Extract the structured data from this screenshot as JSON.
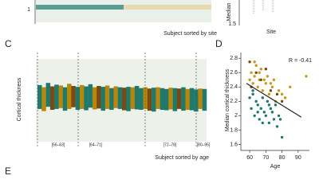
{
  "panel_top_left": {
    "ytick": "1",
    "xlabel": "Subject sorted by site"
  },
  "panel_top_right": {
    "ylabel": "Median",
    "ytick": "1.5",
    "xlabel": "Site"
  },
  "panel_c": {
    "label": "C",
    "ylabel": "Cortical thickness",
    "xlabel": "Subject sorted by age",
    "groups": [
      "[56–63]",
      "[64–71]",
      "[72–78]",
      "[80–95]"
    ],
    "chart_data": {
      "type": "range-bar",
      "ylim": [
        1.4,
        3.6
      ],
      "low": [
        2.3,
        2.25,
        2.35,
        2.28,
        2.3,
        2.32,
        2.26,
        2.3,
        2.34,
        2.28,
        2.3,
        2.27,
        2.33,
        2.29,
        2.31,
        2.26,
        2.3,
        2.28,
        2.32,
        2.3,
        2.27,
        2.25,
        2.3,
        2.29,
        2.28,
        2.3,
        2.26,
        2.24,
        2.3,
        2.28,
        2.27,
        2.29,
        2.25,
        2.3,
        2.26,
        2.28,
        2.27,
        2.24,
        2.3,
        2.26
      ],
      "high": [
        2.85,
        2.8,
        2.9,
        2.82,
        2.86,
        2.84,
        2.8,
        2.88,
        2.83,
        2.81,
        2.85,
        2.82,
        2.87,
        2.8,
        2.83,
        2.81,
        2.84,
        2.78,
        2.82,
        2.8,
        2.79,
        2.81,
        2.8,
        2.83,
        2.78,
        2.8,
        2.77,
        2.79,
        2.8,
        2.78,
        2.76,
        2.79,
        2.78,
        2.77,
        2.8,
        2.76,
        2.78,
        2.75,
        2.77,
        2.76
      ],
      "colors": [
        "#1f7a6d",
        "#b8860b",
        "#1f7a6d",
        "#7a4a14",
        "#1f7a6d",
        "#b8860b",
        "#1f7a6d",
        "#b8860b",
        "#7a4a14",
        "#1f7a6d",
        "#b8860b",
        "#1f7a6d",
        "#1f7a6d",
        "#b8860b",
        "#7a4a14",
        "#1f7a6d",
        "#b8860b",
        "#1f7a6d",
        "#b8860b",
        "#1f7a6d",
        "#7a4a14",
        "#1f7a6d",
        "#b8860b",
        "#1f7a6d",
        "#1f7a6d",
        "#b8860b",
        "#7a4a14",
        "#1f7a6d",
        "#b8860b",
        "#1f7a6d",
        "#1f7a6d",
        "#b8860b",
        "#1f7a6d",
        "#7a4a14",
        "#1f7a6d",
        "#b8860b",
        "#1f7a6d",
        "#1f7a6d",
        "#b8860b",
        "#1f7a6d"
      ]
    }
  },
  "panel_d": {
    "label": "D",
    "annotation": "R = -0.41",
    "chart_data": {
      "type": "scatter",
      "xlabel": "Age",
      "ylabel": "Median cortical thickness",
      "xlim": [
        56,
        97
      ],
      "ylim": [
        1.55,
        2.88
      ],
      "xticks": [
        60,
        70,
        80,
        90
      ],
      "yticks": [
        1.6,
        1.8,
        2.0,
        2.2,
        2.4,
        2.6,
        2.8
      ],
      "series": [
        {
          "color": "#1f7a6d",
          "x": [
            60,
            61,
            62,
            63,
            64,
            65,
            66,
            67,
            68,
            69,
            70,
            71,
            72,
            73,
            74,
            75,
            76,
            77,
            78,
            80,
            62,
            65,
            68,
            72,
            79
          ],
          "values": [
            2.25,
            2.1,
            2.3,
            2.0,
            2.2,
            2.15,
            1.95,
            2.1,
            2.25,
            2.05,
            2.0,
            2.2,
            1.9,
            2.1,
            2.05,
            1.95,
            2.15,
            1.85,
            2.0,
            1.7,
            2.35,
            2.05,
            1.9,
            2.15,
            1.95
          ]
        },
        {
          "color": "#c9971c",
          "x": [
            60,
            61,
            62,
            63,
            64,
            65,
            66,
            67,
            68,
            70,
            71,
            72,
            74,
            75,
            76,
            78,
            80,
            82,
            85,
            95,
            63,
            66,
            69,
            73
          ],
          "values": [
            2.5,
            2.6,
            2.45,
            2.55,
            2.7,
            2.4,
            2.5,
            2.65,
            2.35,
            2.45,
            2.55,
            2.3,
            2.4,
            2.5,
            2.2,
            2.35,
            2.3,
            2.25,
            2.4,
            2.55,
            2.75,
            2.6,
            2.5,
            2.45
          ]
        },
        {
          "color": "#7a4a14",
          "x": [
            60,
            61,
            64,
            67,
            70,
            73,
            77,
            80
          ],
          "values": [
            2.75,
            2.4,
            2.6,
            2.5,
            2.65,
            2.35,
            2.3,
            2.2
          ]
        }
      ],
      "fit_line": {
        "x": [
          58,
          92
        ],
        "values": [
          2.45,
          1.98
        ]
      }
    }
  },
  "panel_e": {
    "label": "E"
  }
}
